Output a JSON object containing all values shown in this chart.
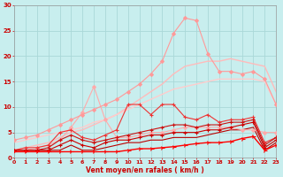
{
  "xlabel": "Vent moyen/en rafales ( km/h )",
  "xlim": [
    0,
    23
  ],
  "ylim": [
    0,
    30
  ],
  "yticks": [
    0,
    5,
    10,
    15,
    20,
    25,
    30
  ],
  "xticks": [
    0,
    1,
    2,
    3,
    4,
    5,
    6,
    7,
    8,
    9,
    10,
    11,
    12,
    13,
    14,
    15,
    16,
    17,
    18,
    19,
    20,
    21,
    22,
    23
  ],
  "bg_color": "#c8eeee",
  "grid_color": "#aad8d8",
  "series": [
    {
      "x": [
        0,
        1,
        2,
        3,
        4,
        5,
        6,
        7,
        8,
        9,
        10,
        11,
        12,
        13,
        14,
        15,
        16,
        17,
        18,
        19,
        20,
        21,
        22,
        23
      ],
      "y": [
        1.5,
        1.5,
        2.0,
        2.5,
        3.5,
        6.0,
        9.0,
        14.0,
        7.5,
        4.0,
        4.0,
        4.5,
        5.0,
        5.0,
        5.5,
        6.0,
        6.0,
        6.0,
        6.0,
        6.0,
        5.5,
        5.5,
        5.0,
        5.0
      ],
      "color": "#ffaaaa",
      "lw": 0.8,
      "marker": "D",
      "ms": 2.0,
      "zorder": 3
    },
    {
      "x": [
        0,
        1,
        2,
        3,
        4,
        5,
        6,
        7,
        8,
        9,
        10,
        11,
        12,
        13,
        14,
        15,
        16,
        17,
        18,
        19,
        20,
        21,
        22,
        23
      ],
      "y": [
        3.5,
        4.0,
        4.5,
        5.5,
        6.5,
        7.5,
        8.5,
        9.5,
        10.5,
        11.5,
        13.0,
        14.5,
        16.5,
        19.0,
        24.5,
        27.5,
        27.0,
        20.5,
        17.0,
        17.0,
        16.5,
        17.0,
        15.5,
        10.5
      ],
      "color": "#ff9999",
      "lw": 0.8,
      "marker": "D",
      "ms": 2.0,
      "zorder": 3
    },
    {
      "x": [
        0,
        1,
        2,
        3,
        4,
        5,
        6,
        7,
        8,
        9,
        10,
        11,
        12,
        13,
        14,
        15,
        16,
        17,
        18,
        19,
        20,
        21,
        22,
        23
      ],
      "y": [
        1.5,
        2.0,
        2.5,
        3.0,
        4.0,
        5.0,
        5.5,
        6.5,
        7.5,
        8.5,
        10.0,
        11.5,
        13.0,
        14.5,
        16.5,
        18.0,
        18.5,
        19.0,
        19.0,
        19.5,
        19.0,
        18.5,
        18.0,
        13.0
      ],
      "color": "#ffbbbb",
      "lw": 1.0,
      "marker": null,
      "ms": 0,
      "zorder": 2
    },
    {
      "x": [
        0,
        1,
        2,
        3,
        4,
        5,
        6,
        7,
        8,
        9,
        10,
        11,
        12,
        13,
        14,
        15,
        16,
        17,
        18,
        19,
        20,
        21,
        22,
        23
      ],
      "y": [
        3.0,
        3.5,
        4.0,
        4.5,
        5.0,
        5.5,
        6.0,
        7.0,
        7.5,
        8.5,
        9.5,
        10.5,
        11.5,
        12.5,
        13.5,
        14.0,
        14.5,
        15.0,
        15.5,
        15.5,
        15.5,
        15.5,
        15.0,
        10.5
      ],
      "color": "#ffcccc",
      "lw": 1.0,
      "marker": null,
      "ms": 0,
      "zorder": 2
    },
    {
      "x": [
        0,
        1,
        2,
        3,
        4,
        5,
        6,
        7,
        8,
        9,
        10,
        11,
        12,
        13,
        14,
        15,
        16,
        17,
        18,
        19,
        20,
        21,
        22,
        23
      ],
      "y": [
        1.5,
        2.0,
        2.0,
        2.5,
        5.0,
        5.5,
        4.0,
        3.5,
        4.5,
        5.5,
        10.5,
        10.5,
        8.5,
        10.5,
        10.5,
        8.0,
        7.5,
        8.5,
        7.0,
        7.5,
        7.5,
        8.0,
        3.0,
        4.0
      ],
      "color": "#ee3333",
      "lw": 0.8,
      "marker": "+",
      "ms": 3.0,
      "zorder": 4
    },
    {
      "x": [
        0,
        1,
        2,
        3,
        4,
        5,
        6,
        7,
        8,
        9,
        10,
        11,
        12,
        13,
        14,
        15,
        16,
        17,
        18,
        19,
        20,
        21,
        22,
        23
      ],
      "y": [
        1.5,
        1.5,
        1.5,
        2.0,
        3.5,
        4.5,
        3.5,
        3.0,
        3.5,
        4.0,
        4.5,
        5.0,
        5.5,
        6.0,
        6.5,
        6.5,
        6.0,
        6.5,
        6.5,
        7.0,
        7.0,
        7.5,
        2.5,
        4.0
      ],
      "color": "#cc1111",
      "lw": 0.8,
      "marker": "+",
      "ms": 3.0,
      "zorder": 4
    },
    {
      "x": [
        0,
        1,
        2,
        3,
        4,
        5,
        6,
        7,
        8,
        9,
        10,
        11,
        12,
        13,
        14,
        15,
        16,
        17,
        18,
        19,
        20,
        21,
        22,
        23
      ],
      "y": [
        1.5,
        1.5,
        1.5,
        1.5,
        2.5,
        3.5,
        2.5,
        2.0,
        3.0,
        3.5,
        3.5,
        4.0,
        4.5,
        4.5,
        5.0,
        5.0,
        5.0,
        5.5,
        5.5,
        6.0,
        6.5,
        7.0,
        2.0,
        3.5
      ],
      "color": "#cc0000",
      "lw": 0.8,
      "marker": "+",
      "ms": 3.0,
      "zorder": 4
    },
    {
      "x": [
        0,
        1,
        2,
        3,
        4,
        5,
        6,
        7,
        8,
        9,
        10,
        11,
        12,
        13,
        14,
        15,
        16,
        17,
        18,
        19,
        20,
        21,
        22,
        23
      ],
      "y": [
        1.5,
        1.5,
        1.5,
        1.5,
        1.5,
        2.5,
        1.5,
        1.5,
        2.0,
        2.5,
        3.0,
        3.0,
        3.5,
        3.5,
        4.0,
        4.0,
        4.0,
        4.5,
        5.0,
        5.5,
        5.5,
        6.0,
        1.5,
        3.0
      ],
      "color": "#bb0000",
      "lw": 0.8,
      "marker": null,
      "ms": 0,
      "zorder": 2
    },
    {
      "x": [
        0,
        1,
        2,
        3,
        4,
        5,
        6,
        7,
        8,
        9,
        10,
        11,
        12,
        13,
        14,
        15,
        16,
        17,
        18,
        19,
        20,
        21,
        22,
        23
      ],
      "y": [
        1.2,
        1.2,
        1.2,
        1.2,
        1.2,
        1.2,
        1.2,
        1.2,
        1.2,
        1.2,
        1.5,
        1.8,
        1.8,
        2.0,
        2.2,
        2.5,
        2.8,
        3.0,
        3.0,
        3.2,
        3.8,
        4.2,
        1.5,
        2.5
      ],
      "color": "#ff0000",
      "lw": 1.0,
      "marker": "4",
      "ms": 4.0,
      "zorder": 5
    }
  ]
}
